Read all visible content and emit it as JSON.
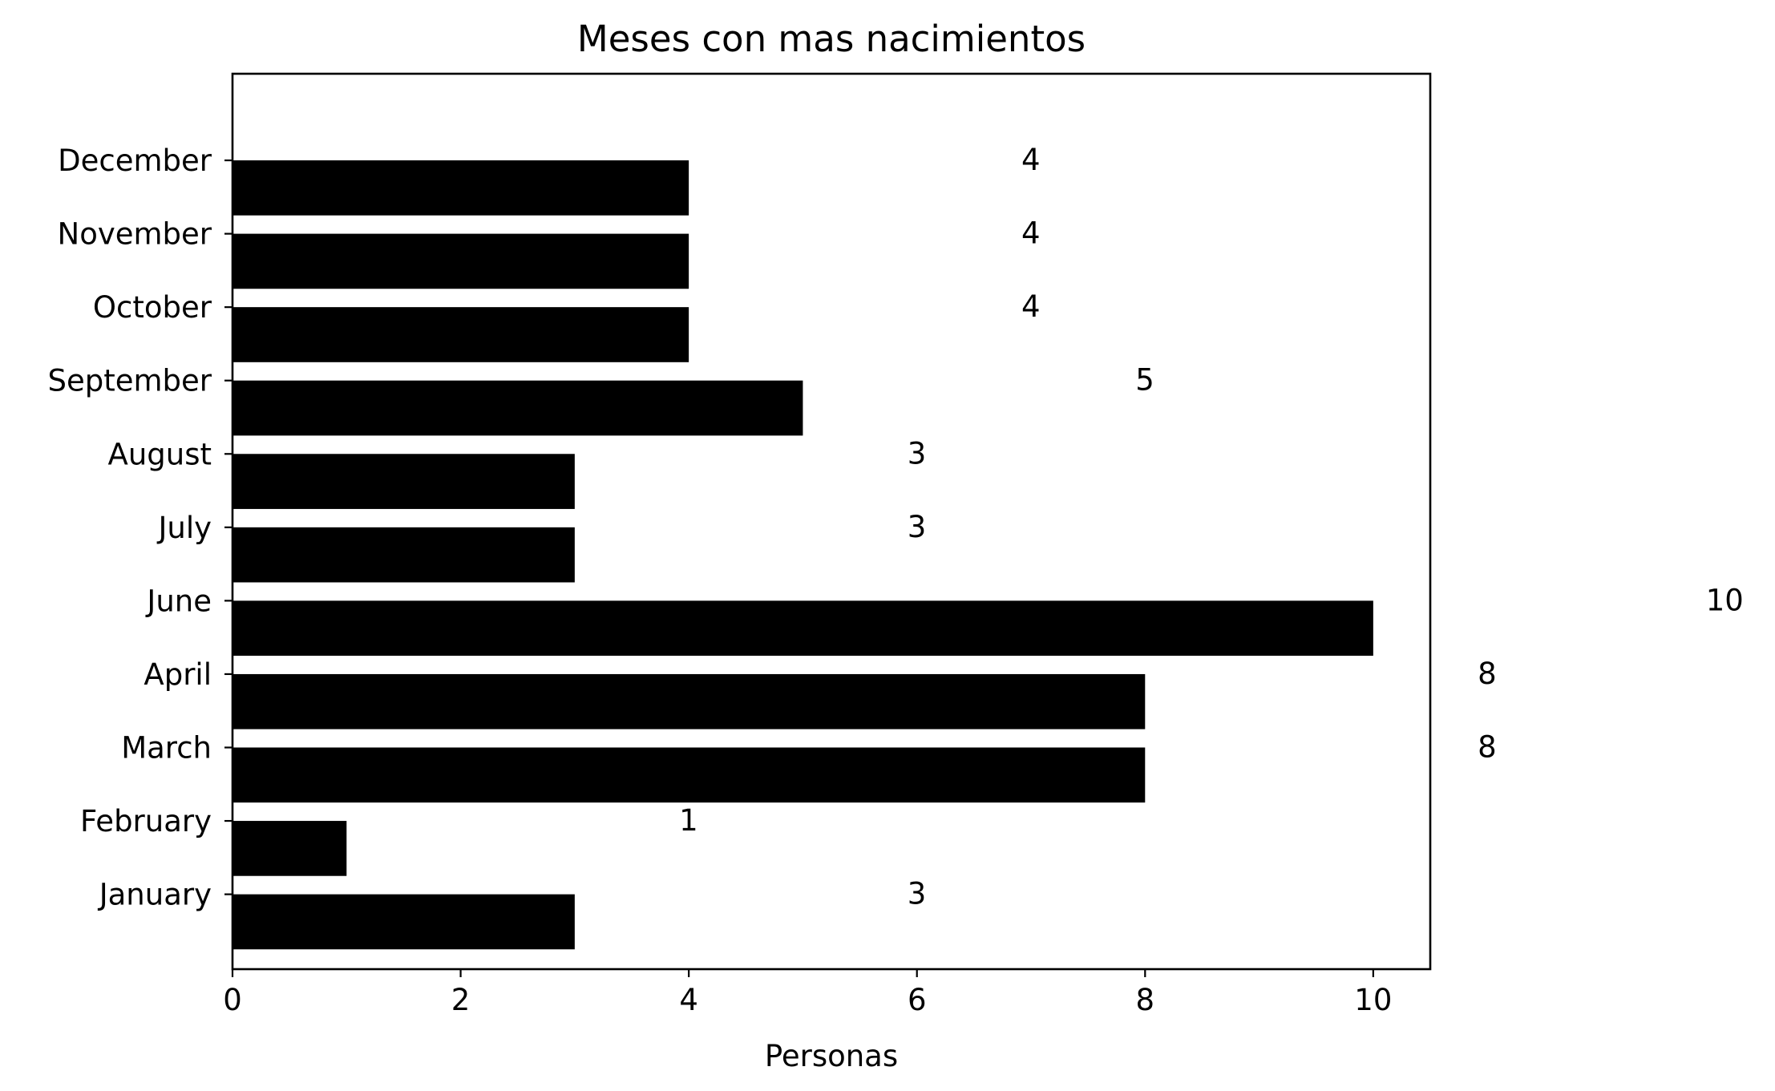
{
  "chart_data": {
    "type": "bar",
    "orientation": "horizontal",
    "title": "Meses con mas nacimientos",
    "xlabel": "Personas",
    "ylabel": "",
    "categories": [
      "January",
      "February",
      "March",
      "April",
      "June",
      "July",
      "August",
      "September",
      "October",
      "November",
      "December"
    ],
    "values": [
      3,
      1,
      8,
      8,
      10,
      3,
      3,
      5,
      4,
      4,
      4
    ],
    "xlim": [
      0,
      10.5
    ],
    "xticks": [
      0,
      2,
      4,
      6,
      8,
      10
    ],
    "bar_color": "#000000",
    "grid": false,
    "legend": "none",
    "data_labels": [
      "3",
      "1",
      "8",
      "8",
      "10",
      "3",
      "3",
      "5",
      "4",
      "4",
      "4"
    ]
  }
}
